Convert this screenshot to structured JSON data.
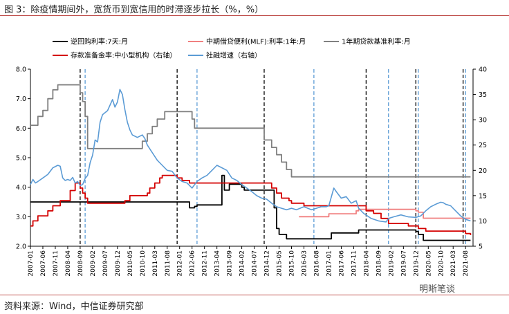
{
  "title": "图 3：除疫情期间外，宽货币到宽信用的时滞逐步拉长（%，%）",
  "source": "资料来源：Wind，中信证券研究部",
  "watermark": "明晰笔谈",
  "colors": {
    "accent_rule": "#c0504d",
    "repo": "#000000",
    "mlf": "#f08080",
    "lpr": "#808080",
    "rrr": "#d40000",
    "tsf": "#5b9bd5"
  },
  "chart_data": {
    "type": "line",
    "title": "",
    "left_axis": {
      "min": 2.0,
      "max": 8.0,
      "ticks": [
        "2.0",
        "3.0",
        "4.0",
        "5.0",
        "6.0",
        "7.0",
        "8.0"
      ]
    },
    "right_axis": {
      "min": 5,
      "max": 40,
      "ticks": [
        "5",
        "10",
        "15",
        "20",
        "25",
        "30",
        "35",
        "40"
      ]
    },
    "x_ticks": [
      "2007-01",
      "2007-06",
      "2007-11",
      "2008-04",
      "2008-09",
      "2009-02",
      "2009-07",
      "2009-12",
      "2010-05",
      "2010-10",
      "2011-03",
      "2011-08",
      "2012-01",
      "2012-06",
      "2012-11",
      "2013-04",
      "2013-09",
      "2014-02",
      "2014-07",
      "2014-12",
      "2015-05",
      "2015-10",
      "2016-03",
      "2016-08",
      "2017-01",
      "2017-06",
      "2017-11",
      "2018-04",
      "2018-09",
      "2019-02",
      "2019-07",
      "2019-12",
      "2020-05",
      "2020-10",
      "2021-03",
      "2021-08"
    ],
    "legend": [
      "逆回购利率:7天:月",
      "中期借贷便利(MLF):利率:1年:月",
      "1年期贷款基准利率:月",
      "存款准备金率:中小型机构（右轴）",
      "社融增速（右轴）"
    ],
    "series": [
      {
        "name": "逆回购利率:7天:月",
        "axis": "left",
        "color": "#000000",
        "points": [
          [
            "2007-01",
            3.5
          ],
          [
            "2012-04",
            3.5
          ],
          [
            "2012-05",
            3.3
          ],
          [
            "2012-07",
            3.35
          ],
          [
            "2012-08",
            3.4
          ],
          [
            "2013-05",
            3.4
          ],
          [
            "2013-06",
            4.4
          ],
          [
            "2013-07",
            3.9
          ],
          [
            "2013-08",
            3.9
          ],
          [
            "2013-09",
            4.1
          ],
          [
            "2013-10",
            4.1
          ],
          [
            "2014-01",
            4.1
          ],
          [
            "2014-02",
            4.0
          ],
          [
            "2014-03",
            3.9
          ],
          [
            "2014-12",
            3.9
          ],
          [
            "2015-03",
            3.3
          ],
          [
            "2015-04",
            2.6
          ],
          [
            "2015-05",
            2.4
          ],
          [
            "2015-08",
            2.25
          ],
          [
            "2015-10",
            2.25
          ],
          [
            "2017-01",
            2.25
          ],
          [
            "2017-02",
            2.45
          ],
          [
            "2017-12",
            2.45
          ],
          [
            "2018-01",
            2.55
          ],
          [
            "2019-11",
            2.55
          ],
          [
            "2019-12",
            2.5
          ],
          [
            "2020-01",
            2.4
          ],
          [
            "2020-03",
            2.2
          ],
          [
            "2021-10",
            2.2
          ]
        ]
      },
      {
        "name": "中期借贷便利(MLF):利率:1年:月",
        "axis": "left",
        "color": "#f08080",
        "points": [
          [
            "2016-01",
            3.0
          ],
          [
            "2016-12",
            3.0
          ],
          [
            "2017-01",
            3.1
          ],
          [
            "2017-12",
            3.2
          ],
          [
            "2018-01",
            3.25
          ],
          [
            "2019-10",
            3.25
          ],
          [
            "2019-11",
            3.25
          ],
          [
            "2019-12",
            3.2
          ],
          [
            "2020-01",
            3.15
          ],
          [
            "2020-02",
            3.15
          ],
          [
            "2020-03",
            2.95
          ],
          [
            "2021-10",
            2.95
          ]
        ]
      },
      {
        "name": "1年期贷款基准利率:月",
        "axis": "left",
        "color": "#808080",
        "points": [
          [
            "2007-01",
            6.1
          ],
          [
            "2007-04",
            6.4
          ],
          [
            "2007-06",
            6.6
          ],
          [
            "2007-08",
            7.0
          ],
          [
            "2007-10",
            7.3
          ],
          [
            "2007-12",
            7.47
          ],
          [
            "2008-08",
            7.47
          ],
          [
            "2008-09",
            7.2
          ],
          [
            "2008-10",
            6.9
          ],
          [
            "2008-11",
            6.4
          ],
          [
            "2008-12",
            5.31
          ],
          [
            "2010-09",
            5.31
          ],
          [
            "2010-10",
            5.56
          ],
          [
            "2010-12",
            5.81
          ],
          [
            "2011-02",
            6.06
          ],
          [
            "2011-04",
            6.31
          ],
          [
            "2011-07",
            6.56
          ],
          [
            "2012-05",
            6.56
          ],
          [
            "2012-06",
            6.31
          ],
          [
            "2012-07",
            6.0
          ],
          [
            "2014-10",
            6.0
          ],
          [
            "2014-11",
            5.6
          ],
          [
            "2015-02",
            5.35
          ],
          [
            "2015-04",
            5.1
          ],
          [
            "2015-06",
            4.85
          ],
          [
            "2015-08",
            4.6
          ],
          [
            "2015-10",
            4.35
          ],
          [
            "2021-10",
            4.35
          ]
        ]
      },
      {
        "name": "存款准备金率:中小型机构（右轴）",
        "axis": "right",
        "color": "#d40000",
        "points": [
          [
            "2007-01",
            9.0
          ],
          [
            "2007-02",
            10.0
          ],
          [
            "2007-04",
            11.0
          ],
          [
            "2007-08",
            12.0
          ],
          [
            "2007-10",
            13.0
          ],
          [
            "2008-01",
            14.0
          ],
          [
            "2008-05",
            16.0
          ],
          [
            "2008-07",
            17.5
          ],
          [
            "2008-09",
            16.5
          ],
          [
            "2008-10",
            15.5
          ],
          [
            "2008-11",
            14.5
          ],
          [
            "2008-12",
            13.5
          ],
          [
            "2010-01",
            13.5
          ],
          [
            "2010-03",
            14.0
          ],
          [
            "2010-05",
            15.0
          ],
          [
            "2010-12",
            15.5
          ],
          [
            "2011-01",
            16.5
          ],
          [
            "2011-03",
            17.5
          ],
          [
            "2011-05",
            18.5
          ],
          [
            "2011-06",
            19.0
          ],
          [
            "2011-11",
            19.0
          ],
          [
            "2011-12",
            18.5
          ],
          [
            "2012-02",
            18.0
          ],
          [
            "2012-05",
            17.5
          ],
          [
            "2015-01",
            17.5
          ],
          [
            "2015-02",
            16.5
          ],
          [
            "2015-04",
            15.5
          ],
          [
            "2015-06",
            14.5
          ],
          [
            "2015-09",
            14.0
          ],
          [
            "2015-10",
            13.5
          ],
          [
            "2016-03",
            13.0
          ],
          [
            "2018-03",
            13.0
          ],
          [
            "2018-04",
            12.0
          ],
          [
            "2018-07",
            11.5
          ],
          [
            "2018-10",
            10.5
          ],
          [
            "2019-01",
            9.5
          ],
          [
            "2019-09",
            9.0
          ],
          [
            "2020-01",
            8.5
          ],
          [
            "2020-04",
            8.0
          ],
          [
            "2021-07",
            8.0
          ],
          [
            "2021-08",
            7.5
          ],
          [
            "2021-10",
            7.2
          ]
        ]
      },
      {
        "name": "社融增速（右轴）",
        "axis": "right",
        "color": "#5b9bd5",
        "points": [
          [
            "2007-01",
            17.2
          ],
          [
            "2007-02",
            18.2
          ],
          [
            "2007-03",
            17.5
          ],
          [
            "2007-04",
            17.8
          ],
          [
            "2007-06",
            18.5
          ],
          [
            "2007-08",
            19.2
          ],
          [
            "2007-10",
            20.5
          ],
          [
            "2007-12",
            21.0
          ],
          [
            "2008-01",
            20.8
          ],
          [
            "2008-02",
            18.5
          ],
          [
            "2008-03",
            18.0
          ],
          [
            "2008-04",
            18.2
          ],
          [
            "2008-05",
            18.0
          ],
          [
            "2008-06",
            18.6
          ],
          [
            "2008-07",
            17.5
          ],
          [
            "2008-08",
            17.8
          ],
          [
            "2008-09",
            17.0
          ],
          [
            "2008-10",
            17.2
          ],
          [
            "2008-11",
            18.4
          ],
          [
            "2008-12",
            19.0
          ],
          [
            "2009-01",
            21.5
          ],
          [
            "2009-02",
            23.0
          ],
          [
            "2009-03",
            26.0
          ],
          [
            "2009-04",
            25.6
          ],
          [
            "2009-05",
            29.5
          ],
          [
            "2009-06",
            31.0
          ],
          [
            "2009-08",
            31.8
          ],
          [
            "2009-10",
            34.0
          ],
          [
            "2009-11",
            32.5
          ],
          [
            "2009-12",
            33.5
          ],
          [
            "2010-01",
            36.0
          ],
          [
            "2010-02",
            35.0
          ],
          [
            "2010-03",
            32.0
          ],
          [
            "2010-04",
            29.5
          ],
          [
            "2010-05",
            28.0
          ],
          [
            "2010-06",
            27.0
          ],
          [
            "2010-08",
            26.5
          ],
          [
            "2010-10",
            27.0
          ],
          [
            "2010-11",
            26.3
          ],
          [
            "2010-12",
            25.0
          ],
          [
            "2011-02",
            23.5
          ],
          [
            "2011-04",
            22.0
          ],
          [
            "2011-06",
            21.0
          ],
          [
            "2011-08",
            20.0
          ],
          [
            "2011-10",
            19.8
          ],
          [
            "2011-12",
            18.5
          ],
          [
            "2012-02",
            17.8
          ],
          [
            "2012-04",
            17.5
          ],
          [
            "2012-06",
            16.5
          ],
          [
            "2012-08",
            17.8
          ],
          [
            "2012-10",
            18.5
          ],
          [
            "2012-12",
            19.0
          ],
          [
            "2013-02",
            20.0
          ],
          [
            "2013-04",
            21.0
          ],
          [
            "2013-06",
            20.5
          ],
          [
            "2013-08",
            20.0
          ],
          [
            "2013-10",
            18.5
          ],
          [
            "2013-12",
            18.0
          ],
          [
            "2014-02",
            17.2
          ],
          [
            "2014-04",
            16.5
          ],
          [
            "2014-06",
            15.8
          ],
          [
            "2014-08",
            15.0
          ],
          [
            "2014-10",
            14.5
          ],
          [
            "2014-12",
            14.3
          ],
          [
            "2015-02",
            13.5
          ],
          [
            "2015-04",
            12.8
          ],
          [
            "2015-06",
            12.5
          ],
          [
            "2015-08",
            12.2
          ],
          [
            "2015-10",
            12.5
          ],
          [
            "2015-12",
            12.2
          ],
          [
            "2016-03",
            12.8
          ],
          [
            "2016-06",
            12.2
          ],
          [
            "2016-08",
            12.5
          ],
          [
            "2016-10",
            12.8
          ],
          [
            "2016-12",
            12.8
          ],
          [
            "2017-01",
            13.0
          ],
          [
            "2017-03",
            16.5
          ],
          [
            "2017-04",
            15.8
          ],
          [
            "2017-06",
            14.5
          ],
          [
            "2017-08",
            14.8
          ],
          [
            "2017-10",
            13.5
          ],
          [
            "2017-12",
            14.0
          ],
          [
            "2018-01",
            12.5
          ],
          [
            "2018-03",
            11.5
          ],
          [
            "2018-06",
            10.5
          ],
          [
            "2018-09",
            10.0
          ],
          [
            "2018-12",
            9.8
          ],
          [
            "2019-01",
            10.5
          ],
          [
            "2019-03",
            10.8
          ],
          [
            "2019-06",
            11.2
          ],
          [
            "2019-09",
            10.8
          ],
          [
            "2019-12",
            10.7
          ],
          [
            "2020-02",
            11.0
          ],
          [
            "2020-04",
            12.0
          ],
          [
            "2020-06",
            12.8
          ],
          [
            "2020-08",
            13.3
          ],
          [
            "2020-10",
            13.7
          ],
          [
            "2020-11",
            13.6
          ],
          [
            "2020-12",
            13.3
          ],
          [
            "2021-02",
            13.0
          ],
          [
            "2021-04",
            12.0
          ],
          [
            "2021-06",
            11.0
          ],
          [
            "2021-08",
            10.3
          ],
          [
            "2021-10",
            10.0
          ]
        ]
      }
    ],
    "vlines_black": [
      "2008-09",
      "2011-12",
      "2014-11",
      "2018-04",
      "2019-12",
      "2021-07"
    ],
    "vlines_blue": [
      "2008-11",
      "2012-08",
      "2016-07",
      "2019-01",
      "2020-01",
      "2021-08"
    ]
  }
}
